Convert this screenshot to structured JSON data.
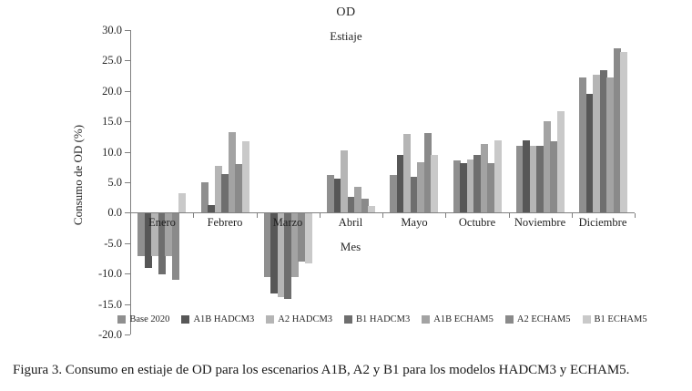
{
  "figure": {
    "caption": "Figura 3. Consumo en estiaje de OD para los escenarios A1B, A2 y B1 para los modelos HADCM3 y ECHAM5."
  },
  "chart_data": {
    "type": "bar",
    "title": "OD",
    "subtitle": "Estiaje",
    "xlabel": "Mes",
    "ylabel": "Consumo de OD (%)",
    "ylim": [
      -20,
      30
    ],
    "ytick_step": 5,
    "ytick_labels": [
      "30.0",
      "25.0",
      "20.0",
      "15.0",
      "10.0",
      "5.0",
      "0.0",
      "-5.0",
      "-10.0",
      "-15.0",
      "-20.0"
    ],
    "grid": false,
    "legend_position": "bottom",
    "categories": [
      "Enero",
      "Febrero",
      "Marzo",
      "Abril",
      "Mayo",
      "Octubre",
      "Noviembre",
      "Diciembre"
    ],
    "series": [
      {
        "name": "Base 2020",
        "color": "#8f8f8f",
        "values": [
          -7.0,
          5.0,
          -10.5,
          6.2,
          6.2,
          8.6,
          10.9,
          22.2
        ]
      },
      {
        "name": "A1B HADCM3",
        "color": "#575757",
        "values": [
          -9.0,
          1.2,
          -13.2,
          5.5,
          9.5,
          8.1,
          11.8,
          19.4
        ]
      },
      {
        "name": "A2 HADCM3",
        "color": "#b5b5b5",
        "values": [
          -7.0,
          7.7,
          -13.8,
          10.2,
          12.9,
          8.7,
          11.0,
          22.6
        ]
      },
      {
        "name": "B1 HADCM3",
        "color": "#6e6e6e",
        "values": [
          -10.0,
          6.3,
          -14.0,
          2.5,
          5.9,
          9.5,
          10.9,
          23.3
        ]
      },
      {
        "name": "A1B ECHAM5",
        "color": "#a3a3a3",
        "values": [
          -7.0,
          13.2,
          -10.5,
          4.2,
          8.3,
          11.3,
          14.9,
          22.1
        ]
      },
      {
        "name": "A2 ECHAM5",
        "color": "#8a8a8a",
        "values": [
          -11.0,
          7.9,
          -8.0,
          2.2,
          13.0,
          8.1,
          11.7,
          27.0
        ]
      },
      {
        "name": "B1 ECHAM5",
        "color": "#c9c9c9",
        "values": [
          3.2,
          11.7,
          -8.2,
          1.0,
          9.5,
          11.9,
          16.6,
          26.4
        ]
      }
    ]
  }
}
